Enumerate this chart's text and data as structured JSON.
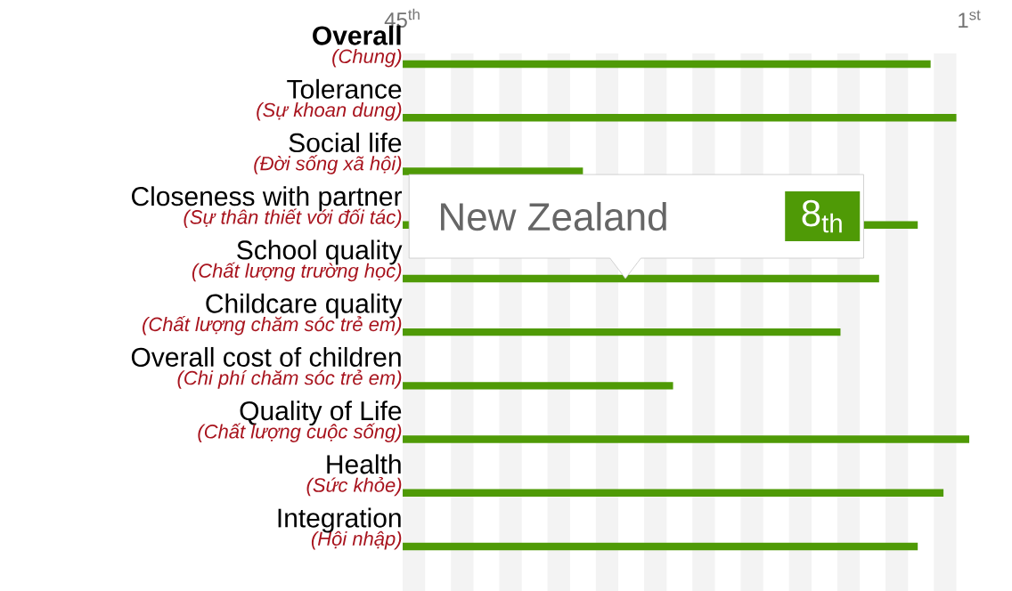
{
  "chart_data": {
    "type": "bar",
    "orientation": "horizontal",
    "categories": [
      "**Overall**",
      "Tolerance",
      "Social life",
      "Closeness with partner",
      "School quality",
      "Childcare quality",
      "Overall cost of children",
      "Quality of Life",
      "Health",
      "Integration"
    ],
    "values": [
      -41,
      -43,
      -14,
      -40,
      -37,
      -34,
      -21,
      -44,
      -42,
      -40
    ],
    "base": [
      45,
      45,
      45,
      45,
      45,
      45,
      45,
      45,
      45,
      45
    ],
    "color": "#4f9a06",
    "xlim": [
      45,
      1
    ],
    "xticks": [
      {
        "value": 45,
        "label": "45$^{th}$"
      },
      {
        "value": 1,
        "label": "1$^{st}$"
      }
    ],
    "bands": [
      {
        "axis": "x",
        "from": 45,
        "to": 43.25,
        "color": "#f3f3f3"
      },
      {
        "axis": "x",
        "from": 41.25,
        "to": 39.5,
        "color": "#f3f3f3"
      },
      {
        "axis": "x",
        "from": 37.5,
        "to": 35.75,
        "color": "#f3f3f3"
      },
      {
        "axis": "x",
        "from": 33.75,
        "to": 32,
        "color": "#f3f3f3"
      },
      {
        "axis": "x",
        "from": 30,
        "to": 28.25,
        "color": "#f3f3f3"
      },
      {
        "axis": "x",
        "from": 26.25,
        "to": 24.5,
        "color": "#f3f3f3"
      },
      {
        "axis": "x",
        "from": 22.5,
        "to": 20.75,
        "color": "#f3f3f3"
      },
      {
        "axis": "x",
        "from": 18.75,
        "to": 17,
        "color": "#f3f3f3"
      },
      {
        "axis": "x",
        "from": 15,
        "to": 13.25,
        "color": "#f3f3f3"
      },
      {
        "axis": "x",
        "from": 11.25,
        "to": 9.5,
        "color": "#f3f3f3"
      },
      {
        "axis": "x",
        "from": 7.5,
        "to": 5.75,
        "color": "#f3f3f3"
      },
      {
        "axis": "x",
        "from": 3.75,
        "to": 2,
        "color": "#f3f3f3"
      }
    ],
    "annotations": [
      "(Chung)",
      "(Sự khoan dung)",
      "(Đời sống xã hội)",
      "(Sự thân thiết với đối tác)",
      "(Chất lượng trường học)",
      "(Chất lượng chăm sóc trẻ em)",
      "(Chi phí chăm sóc trẻ em)",
      "(Chất lượng cuộc sống)",
      "(Sức khỏe)",
      "(Hội nhập)",
      "New Zealand",
      "8$_{th}$"
    ]
  }
}
